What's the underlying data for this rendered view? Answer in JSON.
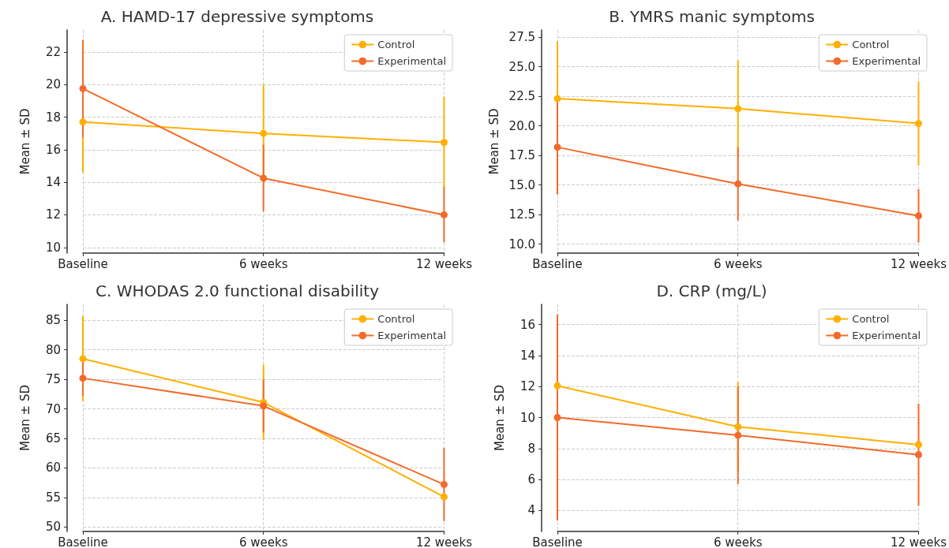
{
  "chart_data": [
    {
      "type": "line",
      "title": "A. HAMD-17 depressive symptoms",
      "ylabel": "Mean ± SD",
      "categories": [
        "Baseline",
        "6 weeks",
        "12 weeks"
      ],
      "ylim": [
        9.65,
        23.35
      ],
      "yticks": [
        10,
        12,
        14,
        16,
        18,
        20,
        22
      ],
      "grid": true,
      "legend": "top right",
      "marker": "circle",
      "series": [
        {
          "name": "Control",
          "color": "#ffb000",
          "values": [
            17.7,
            17.0,
            16.45
          ],
          "errors": [
            3.1,
            3.0,
            2.8
          ]
        },
        {
          "name": "Experimental",
          "color": "#f26b2a",
          "values": [
            19.75,
            14.25,
            12.0
          ],
          "errors": [
            3.0,
            2.05,
            1.7
          ]
        }
      ]
    },
    {
      "type": "line",
      "title": "B. YMRS manic symptoms",
      "ylabel": "Mean ± SD",
      "categories": [
        "Baseline",
        "6 weeks",
        "12 weeks"
      ],
      "ylim": [
        9.25,
        28.1
      ],
      "yticks": [
        {
          "value": 10,
          "label": "10.0"
        },
        12.5,
        {
          "value": 15,
          "label": "15.0"
        },
        17.5,
        {
          "value": 20,
          "label": "20.0"
        },
        22.5,
        {
          "value": 25,
          "label": "25.0"
        },
        27.5
      ],
      "grid": true,
      "legend": "top right",
      "marker": "circle",
      "series": [
        {
          "name": "Control",
          "color": "#ffb000",
          "values": [
            22.3,
            21.45,
            20.2
          ],
          "errors": [
            4.85,
            4.1,
            3.55
          ]
        },
        {
          "name": "Experimental",
          "color": "#f26b2a",
          "values": [
            18.2,
            15.1,
            12.4
          ],
          "errors": [
            4.0,
            3.1,
            2.25
          ]
        }
      ]
    },
    {
      "type": "line",
      "title": "C. WHODAS 2.0 functional disability",
      "ylabel": "Mean ± SD",
      "categories": [
        "Baseline",
        "6 weeks",
        "12 weeks"
      ],
      "ylim": [
        49.25,
        87.7
      ],
      "yticks": [
        50,
        55,
        60,
        65,
        70,
        75,
        80,
        85
      ],
      "grid": true,
      "legend": "top right",
      "marker": "circle",
      "series": [
        {
          "name": "Control",
          "color": "#ffb000",
          "values": [
            78.5,
            71.1,
            55.1
          ],
          "errors": [
            7.2,
            6.4,
            null
          ]
        },
        {
          "name": "Experimental",
          "color": "#f26b2a",
          "values": [
            75.2,
            70.5,
            57.2
          ],
          "errors": [
            3.0,
            4.5,
            6.2
          ]
        }
      ]
    },
    {
      "type": "line",
      "title": "D. CRP (mg/L)",
      "ylabel": "Mean ± SD",
      "categories": [
        "Baseline",
        "6 weeks",
        "12 weeks"
      ],
      "ylim": [
        2.65,
        17.3
      ],
      "yticks": [
        4,
        6,
        8,
        10,
        12,
        14,
        16
      ],
      "grid": true,
      "legend": "top right",
      "marker": "circle",
      "series": [
        {
          "name": "Control",
          "color": "#ffb000",
          "values": [
            12.05,
            9.4,
            8.25
          ],
          "errors": [
            null,
            2.9,
            null
          ]
        },
        {
          "name": "Experimental",
          "color": "#f26b2a",
          "values": [
            10.0,
            8.85,
            7.6
          ],
          "errors": [
            6.65,
            3.15,
            3.3
          ]
        }
      ]
    }
  ]
}
